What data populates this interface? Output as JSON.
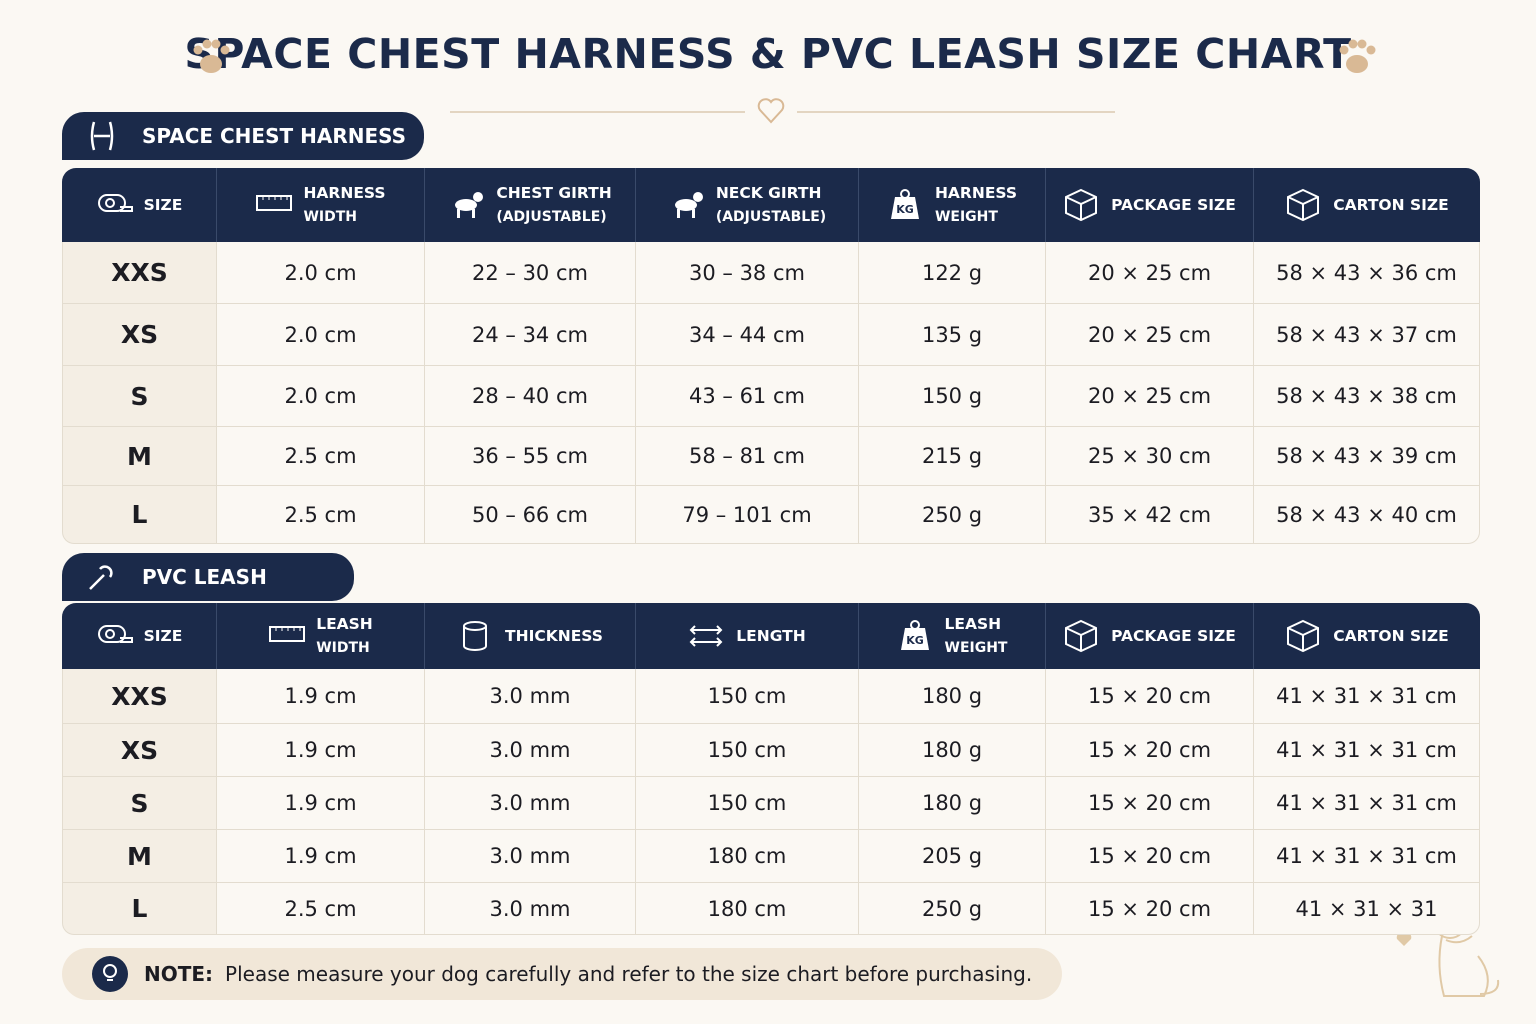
{
  "title": "SPACE CHEST HARNESS & PVC LEASH SIZE CHART",
  "harness": {
    "section_title": "SPACE CHEST HARNESS",
    "headers": [
      [
        "SIZE"
      ],
      [
        "HARNESS",
        "WIDTH"
      ],
      [
        "CHEST GIRTH",
        "(ADJUSTABLE)"
      ],
      [
        "NECK GIRTH",
        "(ADJUSTABLE)"
      ],
      [
        "HARNESS",
        "WEIGHT"
      ],
      [
        "PACKAGE SIZE"
      ],
      [
        "CARTON SIZE"
      ]
    ],
    "rows": [
      [
        "XXS",
        "2.0 cm",
        "22 – 30 cm",
        "30 – 38 cm",
        "122 g",
        "20 × 25 cm",
        "58 × 43 × 36 cm"
      ],
      [
        "XS",
        "2.0 cm",
        "24 – 34 cm",
        "34 – 44 cm",
        "135 g",
        "20 × 25 cm",
        "58 × 43 × 37 cm"
      ],
      [
        "S",
        "2.0 cm",
        "28 – 40 cm",
        "43 – 61 cm",
        "150 g",
        "20 × 25 cm",
        "58 × 43 × 38 cm"
      ],
      [
        "M",
        "2.5 cm",
        "36 – 55 cm",
        "58 – 81 cm",
        "215 g",
        "25 × 30 cm",
        "58 × 43 × 39 cm"
      ],
      [
        "L",
        "2.5 cm",
        "50 – 66 cm",
        "79 – 101 cm",
        "250 g",
        "35 × 42 cm",
        "58 × 43 × 40 cm"
      ]
    ]
  },
  "leash": {
    "section_title": "PVC LEASH",
    "headers": [
      [
        "SIZE"
      ],
      [
        "LEASH",
        "WIDTH"
      ],
      [
        "THICKNESS"
      ],
      [
        "LENGTH"
      ],
      [
        "LEASH",
        "WEIGHT"
      ],
      [
        "PACKAGE SIZE"
      ],
      [
        "CARTON SIZE"
      ]
    ],
    "rows": [
      [
        "XXS",
        "1.9 cm",
        "3.0 mm",
        "150 cm",
        "180 g",
        "15 × 20 cm",
        "41 × 31 × 31 cm"
      ],
      [
        "XS",
        "1.9 cm",
        "3.0 mm",
        "150 cm",
        "180 g",
        "15 × 20 cm",
        "41 × 31 × 31 cm"
      ],
      [
        "S",
        "1.9 cm",
        "3.0 mm",
        "150 cm",
        "180 g",
        "15 × 20 cm",
        "41 × 31 × 31 cm"
      ],
      [
        "M",
        "1.9 cm",
        "3.0 mm",
        "180 cm",
        "205 g",
        "15 × 20 cm",
        "41 × 31 × 31 cm"
      ],
      [
        "L",
        "2.5 cm",
        "3.0 mm",
        "180 cm",
        "250 g",
        "15 × 20 cm",
        "41 × 31 × 31"
      ]
    ]
  },
  "note": {
    "label": "NOTE:",
    "text": "Please measure your dog carefully and refer to the size chart before purchasing."
  }
}
